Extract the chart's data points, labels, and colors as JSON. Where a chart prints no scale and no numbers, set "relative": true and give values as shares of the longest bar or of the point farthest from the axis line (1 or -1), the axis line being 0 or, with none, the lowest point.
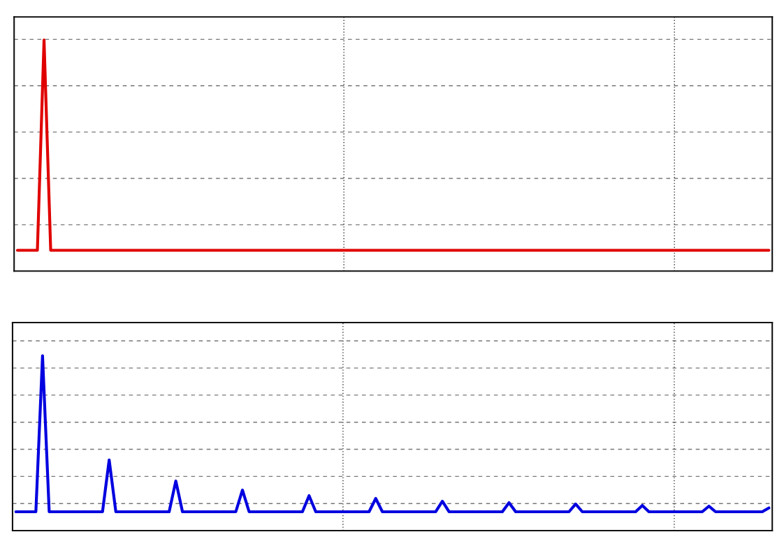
{
  "chart_data": [
    {
      "type": "line",
      "relative": true,
      "grid": true,
      "categories": [
        null,
        null,
        null,
        null,
        null,
        null,
        null,
        null,
        null,
        null,
        null,
        null,
        null,
        null,
        null,
        null,
        null,
        null,
        null,
        null,
        null,
        null,
        null,
        null,
        null,
        null,
        null,
        null,
        null,
        null,
        null,
        null,
        null,
        null,
        null,
        null,
        null,
        null,
        null,
        null,
        null,
        null,
        null,
        null,
        null,
        null,
        null,
        null,
        null,
        null,
        null,
        null,
        null,
        null,
        null,
        null,
        null,
        null,
        null,
        null,
        null,
        null,
        null,
        null,
        null,
        null,
        null,
        null,
        null,
        null,
        null,
        null,
        null,
        null,
        null,
        null,
        null,
        null,
        null,
        null,
        null,
        null,
        null,
        null,
        null,
        null,
        null,
        null,
        null,
        null,
        null,
        null,
        null,
        null,
        null,
        null,
        null,
        null,
        null,
        null,
        null,
        null,
        null,
        null,
        null,
        null,
        null,
        null,
        null,
        null,
        null,
        null,
        null,
        null
      ],
      "series": [
        {
          "color": "#e00000",
          "values": [
            0.09,
            0.09,
            0.09,
            0.09,
            1,
            0.09,
            0.09,
            0.09,
            0.09,
            0.09,
            0.09,
            0.09,
            0.09,
            0.09,
            0.09,
            0.09,
            0.09,
            0.09,
            0.09,
            0.09,
            0.09,
            0.09,
            0.09,
            0.09,
            0.09,
            0.09,
            0.09,
            0.09,
            0.09,
            0.09,
            0.09,
            0.09,
            0.09,
            0.09,
            0.09,
            0.09,
            0.09,
            0.09,
            0.09,
            0.09,
            0.09,
            0.09,
            0.09,
            0.09,
            0.09,
            0.09,
            0.09,
            0.09,
            0.09,
            0.09,
            0.09,
            0.09,
            0.09,
            0.09,
            0.09,
            0.09,
            0.09,
            0.09,
            0.09,
            0.09,
            0.09,
            0.09,
            0.09,
            0.09,
            0.09,
            0.09,
            0.09,
            0.09,
            0.09,
            0.09,
            0.09,
            0.09,
            0.09,
            0.09,
            0.09,
            0.09,
            0.09,
            0.09,
            0.09,
            0.09,
            0.09,
            0.09,
            0.09,
            0.09,
            0.09,
            0.09,
            0.09,
            0.09,
            0.09,
            0.09,
            0.09,
            0.09,
            0.09,
            0.09,
            0.09,
            0.09,
            0.09,
            0.09,
            0.09,
            0.09,
            0.09,
            0.09,
            0.09,
            0.09,
            0.09,
            0.09,
            0.09,
            0.09,
            0.09,
            0.09,
            0.09,
            0.09,
            0.09,
            0.09
          ]
        }
      ]
    },
    {
      "type": "line",
      "relative": true,
      "grid": true,
      "categories": [
        null,
        null,
        null,
        null,
        null,
        null,
        null,
        null,
        null,
        null,
        null,
        null,
        null,
        null,
        null,
        null,
        null,
        null,
        null,
        null,
        null,
        null,
        null,
        null,
        null,
        null,
        null,
        null,
        null,
        null,
        null,
        null,
        null,
        null,
        null,
        null,
        null,
        null,
        null,
        null,
        null,
        null,
        null,
        null,
        null,
        null,
        null,
        null,
        null,
        null,
        null,
        null,
        null,
        null,
        null,
        null,
        null,
        null,
        null,
        null,
        null,
        null,
        null,
        null,
        null,
        null,
        null,
        null,
        null,
        null,
        null,
        null,
        null,
        null,
        null,
        null,
        null,
        null,
        null,
        null,
        null,
        null,
        null,
        null,
        null,
        null,
        null,
        null,
        null,
        null,
        null,
        null,
        null,
        null,
        null,
        null,
        null,
        null,
        null,
        null,
        null,
        null,
        null,
        null,
        null,
        null,
        null,
        null,
        null,
        null,
        null,
        null,
        null,
        null
      ],
      "series": [
        {
          "color": "#0000e0",
          "values": [
            0.108,
            0.108,
            0.108,
            0.108,
            1,
            0.108,
            0.108,
            0.108,
            0.108,
            0.108,
            0.108,
            0.108,
            0.108,
            0.108,
            0.404,
            0.108,
            0.108,
            0.108,
            0.108,
            0.108,
            0.108,
            0.108,
            0.108,
            0.108,
            0.284,
            0.108,
            0.108,
            0.108,
            0.108,
            0.108,
            0.108,
            0.108,
            0.108,
            0.108,
            0.232,
            0.108,
            0.108,
            0.108,
            0.108,
            0.108,
            0.108,
            0.108,
            0.108,
            0.108,
            0.2,
            0.108,
            0.108,
            0.108,
            0.108,
            0.108,
            0.108,
            0.108,
            0.108,
            0.108,
            0.184,
            0.108,
            0.108,
            0.108,
            0.108,
            0.108,
            0.108,
            0.108,
            0.108,
            0.108,
            0.168,
            0.108,
            0.108,
            0.108,
            0.108,
            0.108,
            0.108,
            0.108,
            0.108,
            0.108,
            0.16,
            0.108,
            0.108,
            0.108,
            0.108,
            0.108,
            0.108,
            0.108,
            0.108,
            0.108,
            0.152,
            0.108,
            0.108,
            0.108,
            0.108,
            0.108,
            0.108,
            0.108,
            0.108,
            0.108,
            0.144,
            0.108,
            0.108,
            0.108,
            0.108,
            0.108,
            0.108,
            0.108,
            0.108,
            0.108,
            0.14,
            0.108,
            0.108,
            0.108,
            0.108,
            0.108,
            0.108,
            0.108,
            0.108,
            0.13
          ]
        }
      ]
    }
  ]
}
